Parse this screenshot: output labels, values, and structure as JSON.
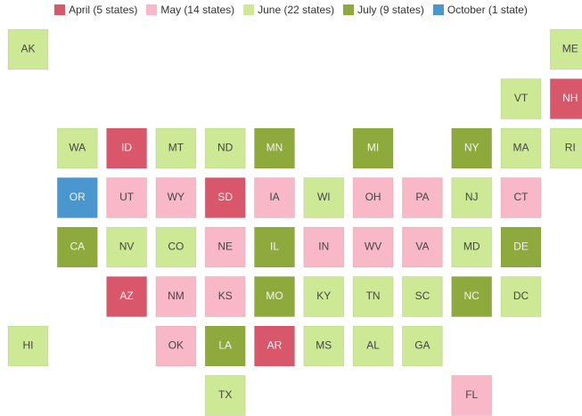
{
  "legend": [
    {
      "name": "April (5 states)",
      "color": "#d9576b"
    },
    {
      "name": "May (14 states)",
      "color": "#f9b8c8"
    },
    {
      "name": "June (22 states)",
      "color": "#cde996"
    },
    {
      "name": "July (9 states)",
      "color": "#8faa3c"
    },
    {
      "name": "October (1 state)",
      "color": "#4a97d0"
    }
  ],
  "tiles": [
    {
      "label": "AK",
      "group": 2
    },
    {
      "label": "ME",
      "group": 2
    },
    {
      "label": "VT",
      "group": 2
    },
    {
      "label": "NH",
      "group": 0
    },
    {
      "label": "WA",
      "group": 2
    },
    {
      "label": "ID",
      "group": 0
    },
    {
      "label": "MT",
      "group": 2
    },
    {
      "label": "ND",
      "group": 2
    },
    {
      "label": "MN",
      "group": 3
    },
    {
      "label": "MI",
      "group": 3
    },
    {
      "label": "NY",
      "group": 3
    },
    {
      "label": "MA",
      "group": 2
    },
    {
      "label": "RI",
      "group": 2
    },
    {
      "label": "OR",
      "group": 4
    },
    {
      "label": "UT",
      "group": 1
    },
    {
      "label": "WY",
      "group": 1
    },
    {
      "label": "SD",
      "group": 0
    },
    {
      "label": "IA",
      "group": 1
    },
    {
      "label": "WI",
      "group": 2
    },
    {
      "label": "OH",
      "group": 1
    },
    {
      "label": "PA",
      "group": 1
    },
    {
      "label": "NJ",
      "group": 2
    },
    {
      "label": "CT",
      "group": 1
    },
    {
      "label": "CA",
      "group": 3
    },
    {
      "label": "NV",
      "group": 2
    },
    {
      "label": "CO",
      "group": 2
    },
    {
      "label": "NE",
      "group": 1
    },
    {
      "label": "IL",
      "group": 3
    },
    {
      "label": "IN",
      "group": 1
    },
    {
      "label": "WV",
      "group": 1
    },
    {
      "label": "VA",
      "group": 1
    },
    {
      "label": "MD",
      "group": 2
    },
    {
      "label": "DE",
      "group": 3
    },
    {
      "label": "AZ",
      "group": 0
    },
    {
      "label": "NM",
      "group": 1
    },
    {
      "label": "KS",
      "group": 1
    },
    {
      "label": "MO",
      "group": 3
    },
    {
      "label": "KY",
      "group": 2
    },
    {
      "label": "TN",
      "group": 2
    },
    {
      "label": "SC",
      "group": 2
    },
    {
      "label": "NC",
      "group": 3
    },
    {
      "label": "DC",
      "group": 2
    },
    {
      "label": "HI",
      "group": 2
    },
    {
      "label": "OK",
      "group": 1
    },
    {
      "label": "LA",
      "group": 3
    },
    {
      "label": "AR",
      "group": 0
    },
    {
      "label": "MS",
      "group": 2
    },
    {
      "label": "AL",
      "group": 2
    },
    {
      "label": "GA",
      "group": 2
    },
    {
      "label": "TX",
      "group": 2
    },
    {
      "label": "FL",
      "group": 1
    }
  ]
}
